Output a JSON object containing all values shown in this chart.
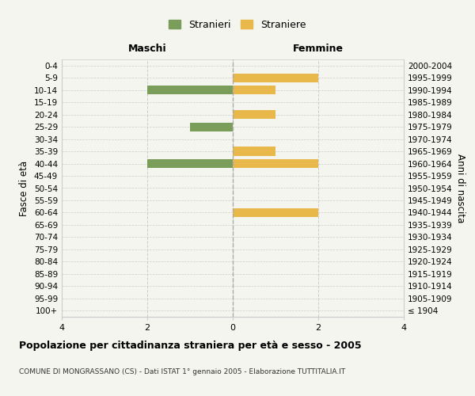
{
  "age_groups": [
    "100+",
    "95-99",
    "90-94",
    "85-89",
    "80-84",
    "75-79",
    "70-74",
    "65-69",
    "60-64",
    "55-59",
    "50-54",
    "45-49",
    "40-44",
    "35-39",
    "30-34",
    "25-29",
    "20-24",
    "15-19",
    "10-14",
    "5-9",
    "0-4"
  ],
  "birth_years": [
    "≤ 1904",
    "1905-1909",
    "1910-1914",
    "1915-1919",
    "1920-1924",
    "1925-1929",
    "1930-1934",
    "1935-1939",
    "1940-1944",
    "1945-1949",
    "1950-1954",
    "1955-1959",
    "1960-1964",
    "1965-1969",
    "1970-1974",
    "1975-1979",
    "1980-1984",
    "1985-1989",
    "1990-1994",
    "1995-1999",
    "2000-2004"
  ],
  "maschi": [
    0,
    0,
    0,
    0,
    0,
    0,
    0,
    0,
    0,
    0,
    0,
    0,
    2,
    0,
    0,
    1,
    0,
    0,
    2,
    0,
    0
  ],
  "femmine": [
    0,
    0,
    0,
    0,
    0,
    0,
    0,
    0,
    2,
    0,
    0,
    0,
    2,
    1,
    0,
    0,
    1,
    0,
    1,
    2,
    0
  ],
  "color_maschi": "#7a9e5a",
  "color_femmine": "#e8b84b",
  "xlim": 4,
  "title": "Popolazione per cittadinanza straniera per età e sesso - 2005",
  "subtitle": "COMUNE DI MONGRASSANO (CS) - Dati ISTAT 1° gennaio 2005 - Elaborazione TUTTITALIA.IT",
  "label_maschi": "Stranieri",
  "label_femmine": "Straniere",
  "ylabel_left": "Fasce di età",
  "ylabel_right": "Anni di nascita",
  "xlabel_maschi": "Maschi",
  "xlabel_femmine": "Femmine",
  "bg_color": "#f5f5f0",
  "grid_color": "#cccccc",
  "white": "#ffffff"
}
